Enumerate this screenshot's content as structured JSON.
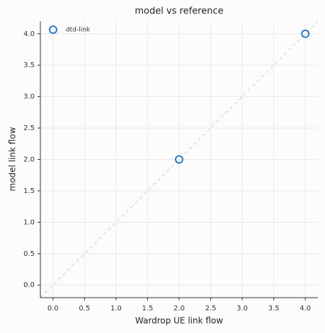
{
  "chart_data": {
    "type": "scatter",
    "title": "model vs reference",
    "x_label": "Wardrop UE link flow",
    "y_label": "model link flow",
    "series": [
      {
        "name": "dtd-link",
        "color": "#2f7bc9",
        "x": [
          2,
          4
        ],
        "values": [
          2,
          4
        ]
      }
    ],
    "xlim": [
      -0.2,
      4.2
    ],
    "ylim": [
      -0.2,
      4.2
    ],
    "xticks": [
      {
        "value": 0,
        "label": "0.0"
      },
      {
        "value": 0.5,
        "label": "0.5"
      },
      {
        "value": 1,
        "label": "1.0"
      },
      {
        "value": 1.5,
        "label": "1.5"
      },
      {
        "value": 2,
        "label": "2.0"
      },
      {
        "value": 2.5,
        "label": "2.5"
      },
      {
        "value": 3,
        "label": "3.0"
      },
      {
        "value": 3.5,
        "label": "3.5"
      },
      {
        "value": 4,
        "label": "4.0"
      }
    ],
    "yticks": [
      {
        "value": 0,
        "label": "0.0"
      },
      {
        "value": 0.5,
        "label": "0.5"
      },
      {
        "value": 1,
        "label": "1.0"
      },
      {
        "value": 1.5,
        "label": "1.5"
      },
      {
        "value": 2,
        "label": "2.0"
      },
      {
        "value": 2.5,
        "label": "2.5"
      },
      {
        "value": 3,
        "label": "3.0"
      },
      {
        "value": 3.5,
        "label": "3.5"
      },
      {
        "value": 4,
        "label": "4.0"
      }
    ],
    "grid": true,
    "legend": "upper left"
  }
}
